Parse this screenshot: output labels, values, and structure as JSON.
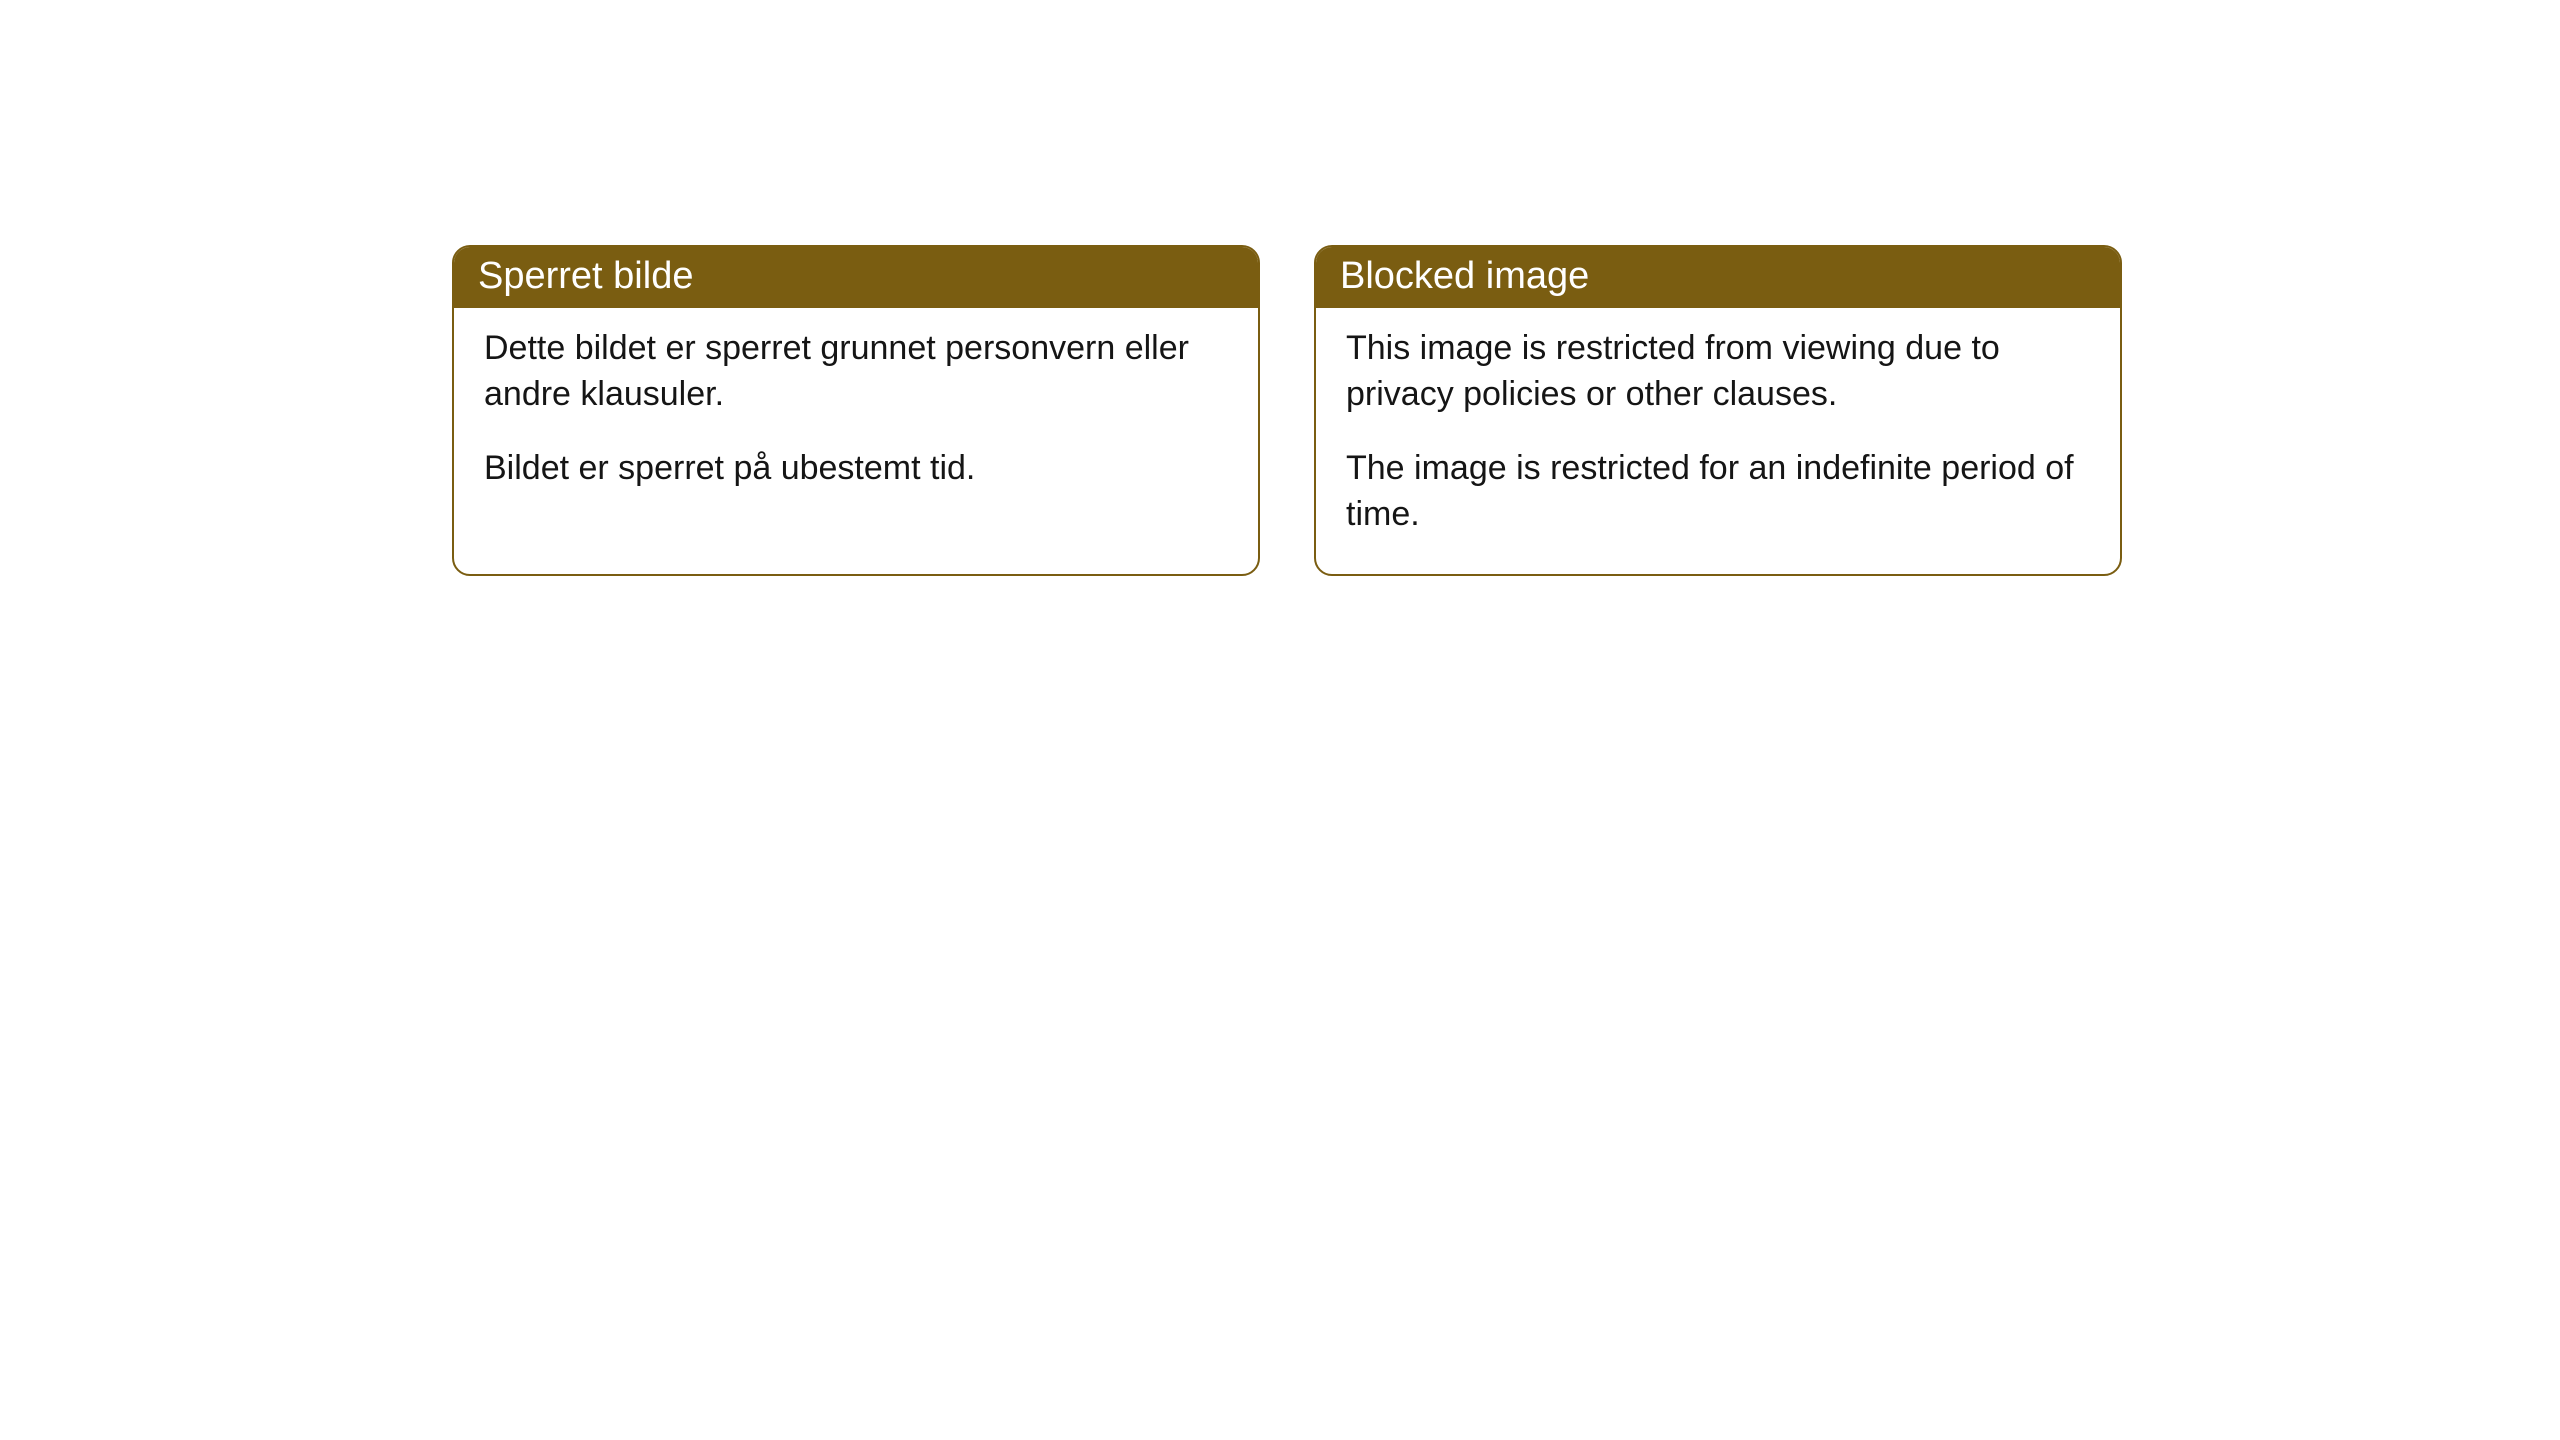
{
  "cards": [
    {
      "header": "Sperret bilde",
      "paragraph1": "Dette bildet er sperret grunnet personvern eller andre klausuler.",
      "paragraph2": "Bildet er sperret på ubestemt tid."
    },
    {
      "header": "Blocked image",
      "paragraph1": "This image is restricted from viewing due to privacy policies or other clauses.",
      "paragraph2": "The image is restricted for an indefinite period of time."
    }
  ],
  "styling": {
    "header_background": "#7a5d11",
    "header_text_color": "#ffffff",
    "border_color": "#7a5d11",
    "body_text_color": "#151515",
    "background_color": "#ffffff",
    "border_radius": 18,
    "header_fontsize": 38,
    "body_fontsize": 34
  }
}
